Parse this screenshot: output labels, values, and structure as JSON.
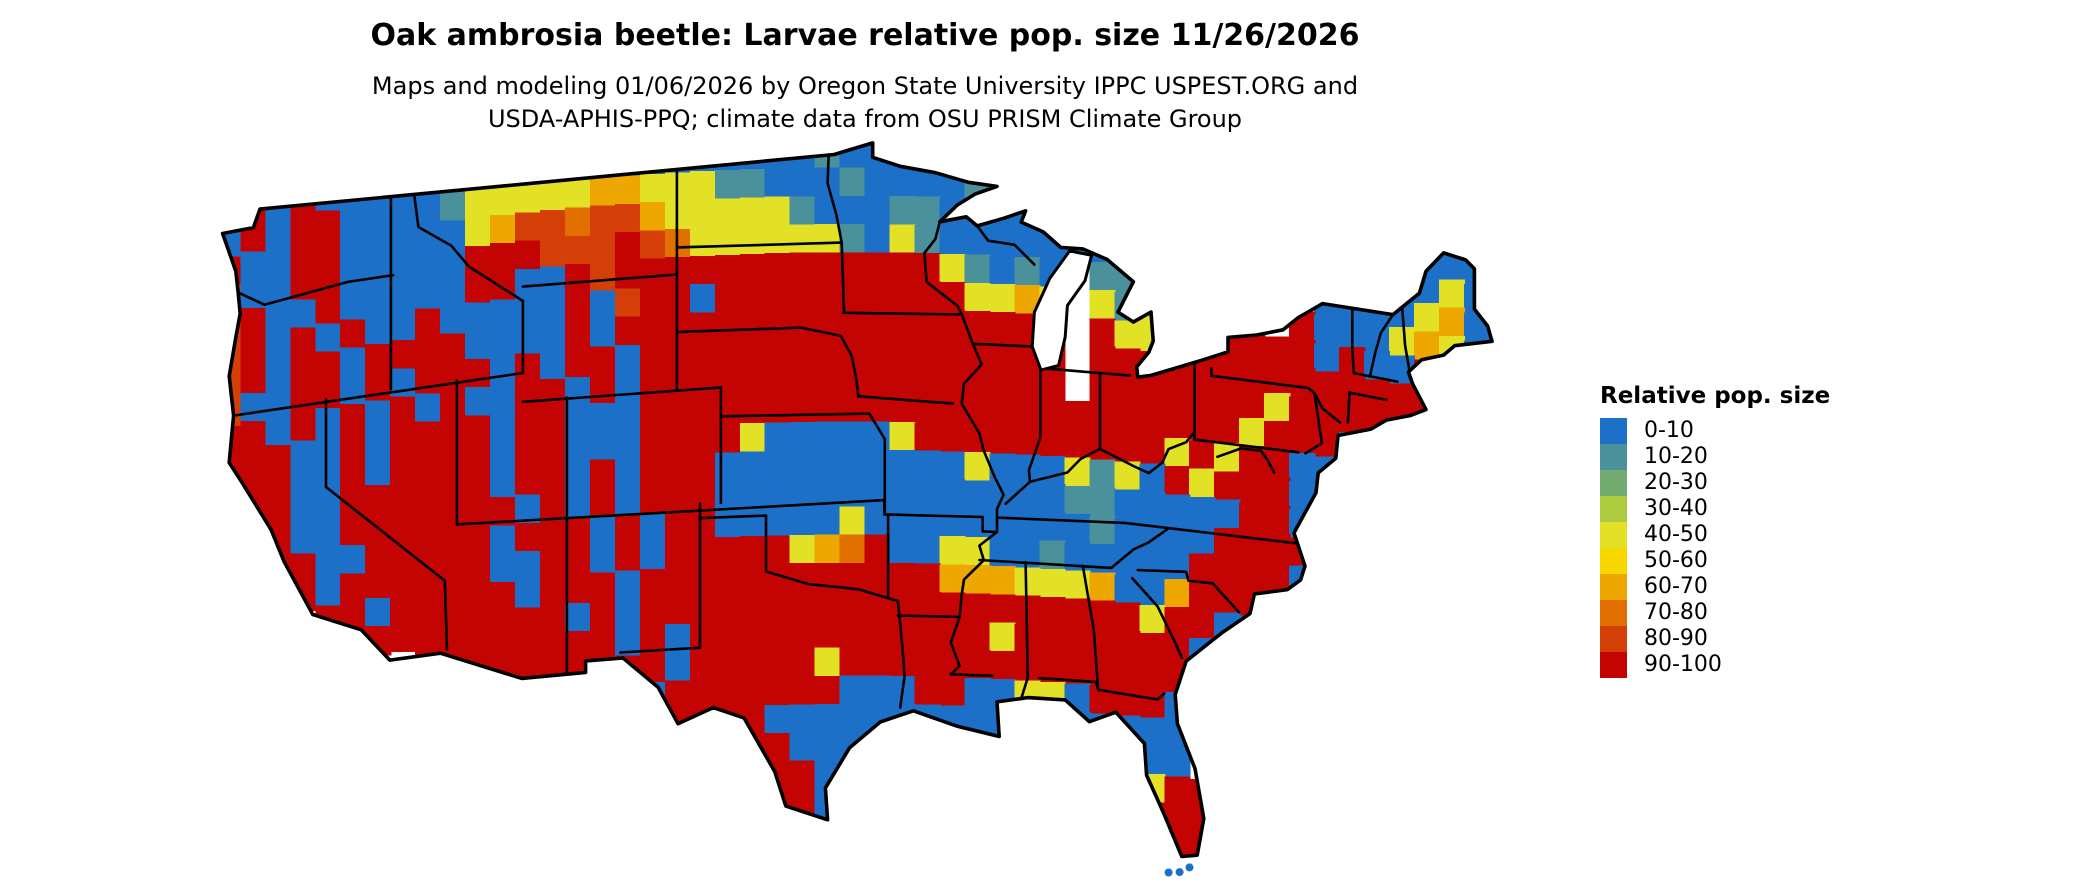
{
  "title": "Oak ambrosia beetle: Larvae relative pop. size 11/26/2026",
  "subtitle_lines": [
    "Maps and modeling 01/06/2026 by Oregon State University IPPC USPEST.ORG and",
    "USDA-APHIS-PPQ; climate data from OSU PRISM Climate Group"
  ],
  "legend": {
    "title": "Relative pop. size",
    "classes": [
      {
        "label": "0-10",
        "color": "#1c70c8"
      },
      {
        "label": "10-20",
        "color": "#4a919b"
      },
      {
        "label": "20-30",
        "color": "#72ac71"
      },
      {
        "label": "30-40",
        "color": "#aecb3f"
      },
      {
        "label": "40-50",
        "color": "#e2e126"
      },
      {
        "label": "50-60",
        "color": "#f6d700"
      },
      {
        "label": "60-70",
        "color": "#eda700"
      },
      {
        "label": "70-80",
        "color": "#e17000"
      },
      {
        "label": "80-90",
        "color": "#d43f08"
      },
      {
        "label": "90-100",
        "color": "#c40403"
      }
    ]
  },
  "map": {
    "region_note": "Contiguous United States raster, values keyed to legend classes 0-9, '.' = no data/water",
    "empty_char": ".",
    "border_color": "#000000",
    "raster_rows": [
      [
        "09090",
        "00",
        "001441144100",
        "00000100",
        "0010",
        "....................."
      ],
      [
        "09099",
        "00",
        "001444446644",
        "41100010",
        "00010",
        ".................",
        "00",
        "."
      ],
      [
        "90099",
        "00",
        "000468878864",
        "44441000",
        "11000",
        "0000",
        "............",
        "000",
        "."
      ],
      [
        "80099",
        "00",
        "000999888987",
        "44444410",
        "41000",
        "00001",
        "..........",
        "0040",
        "."
      ],
      [
        "89009",
        "00",
        "000990098999",
        "99999999",
        "99410",
        "10",
        ".",
        "114",
        "......",
        "00004600"
      ],
      [
        "89090",
        "90",
        "090000090899",
        "09999999",
        "99944",
        "64",
        ".",
        "414",
        ".....",
        "900046400"
      ],
      [
        "89099",
        "09",
        "999000090999",
        "99999999",
        "99999",
        "99",
        ".",
        "944",
        "..",
        "9999090090",
        ".."
      ],
      [
        "80099",
        "09",
        "099909099099",
        "99999999",
        "99999",
        "99",
        ".",
        "99999",
        "9999999990",
        ".."
      ],
      [
        "99090",
        "90",
        "909009909099",
        "99999999",
        "9999999",
        ".",
        "99",
        "999",
        "99499",
        "9",
        "99",
        "...."
      ],
      [
        "99900",
        "90",
        "999909900099",
        "99999999",
        "9999999",
        "9999",
        "99",
        "949990",
        "......"
      ],
      [
        "99900",
        "90",
        "999909900099",
        "99400000",
        "4999",
        "999",
        "9999",
        "49",
        "49900",
        "......."
      ],
      [
        "99900",
        "99",
        "999909909099",
        "90000000",
        "00040004140949990",
        "0",
        "......."
      ],
      [
        "99900",
        "99",
        "999990909099",
        "90000000",
        "0000",
        "0001100000990",
        "........"
      ],
      [
        "99990",
        "09",
        "999909990909",
        "90000040",
        "0000",
        "0000100009999",
        "........"
      ],
      [
        "99990",
        "99",
        "999900990909",
        "99994679",
        "00440010000099990",
        "........"
      ],
      [
        "....",
        "99099",
        "9990",
        "999099",
        "99999999",
        "9966644460069999",
        "........."
      ],
      [
        ".....",
        "9999",
        "9999",
        "909099",
        "99999999",
        "9999",
        "99999",
        "949",
        "90",
        "0",
        ".........."
      ],
      [
        "........",
        "9",
        "99999",
        "9909",
        "0999999999",
        "999",
        "49",
        "999",
        "999",
        "0",
        "............"
      ],
      [
        ".........",
        "99999",
        "999",
        "90999994999",
        "999",
        "99",
        "999",
        "999",
        "0",
        "............"
      ],
      [
        "................",
        "909999999000",
        "990",
        "04",
        "40",
        "99900",
        "............"
      ],
      [
        "..................",
        "9999000000",
        "000",
        "000",
        "00000",
        "............."
      ],
      [
        "....................",
        "9990000",
        ".",
        "00",
        ".....",
        "0000",
        "............."
      ],
      [
        ".....................",
        "9990",
        "...........",
        "0499",
        "............"
      ],
      [
        "......................",
        "990",
        "............",
        "999",
        "............"
      ],
      [
        ".......................",
        "99",
        ".............",
        "99",
        "............"
      ],
      [
        "......................................",
        "00",
        "............"
      ]
    ]
  }
}
